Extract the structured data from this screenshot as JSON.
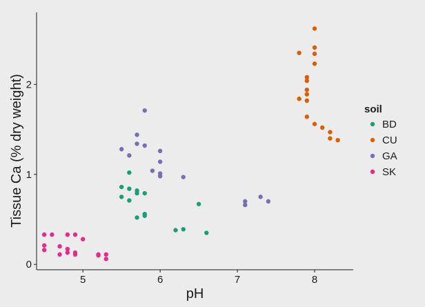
{
  "chart_data": {
    "type": "scatter",
    "title": "",
    "xlabel": "pH",
    "ylabel": "Tissue Ca (% dry weight)",
    "xlim": [
      4.4,
      8.5
    ],
    "ylim": [
      -0.06,
      2.8
    ],
    "xticks": [
      5,
      6,
      7,
      8
    ],
    "yticks": [
      0,
      1,
      2
    ],
    "grid": false,
    "legend": {
      "title": "soil",
      "placement": "right"
    },
    "series": [
      {
        "name": "BD",
        "color": "#1b9e77",
        "points": [
          [
            5.5,
            0.86
          ],
          [
            5.6,
            0.84
          ],
          [
            5.7,
            0.82
          ],
          [
            5.7,
            0.79
          ],
          [
            5.8,
            0.79
          ],
          [
            5.5,
            0.75
          ],
          [
            5.6,
            0.71
          ],
          [
            5.6,
            1.02
          ],
          [
            5.8,
            0.56
          ],
          [
            5.8,
            0.54
          ],
          [
            5.7,
            0.52
          ],
          [
            6.2,
            0.38
          ],
          [
            6.3,
            0.39
          ],
          [
            6.5,
            0.67
          ],
          [
            6.6,
            0.35
          ]
        ]
      },
      {
        "name": "CU",
        "color": "#d95f02",
        "points": [
          [
            8.0,
            2.62
          ],
          [
            8.0,
            2.41
          ],
          [
            8.0,
            2.34
          ],
          [
            7.8,
            2.35
          ],
          [
            8.0,
            2.23
          ],
          [
            7.9,
            2.08
          ],
          [
            7.9,
            2.04
          ],
          [
            7.9,
            1.94
          ],
          [
            7.9,
            1.89
          ],
          [
            7.8,
            1.84
          ],
          [
            7.9,
            1.82
          ],
          [
            7.9,
            1.64
          ],
          [
            8.0,
            1.56
          ],
          [
            8.1,
            1.52
          ],
          [
            8.2,
            1.47
          ],
          [
            8.2,
            1.4
          ],
          [
            8.3,
            1.38
          ]
        ]
      },
      {
        "name": "GA",
        "color": "#7570b3",
        "points": [
          [
            5.8,
            1.71
          ],
          [
            5.7,
            1.44
          ],
          [
            5.7,
            1.34
          ],
          [
            5.8,
            1.32
          ],
          [
            5.5,
            1.28
          ],
          [
            6.0,
            1.26
          ],
          [
            5.6,
            1.21
          ],
          [
            6.0,
            1.14
          ],
          [
            5.9,
            1.04
          ],
          [
            6.0,
            1.01
          ],
          [
            6.0,
            0.98
          ],
          [
            6.3,
            0.97
          ],
          [
            7.1,
            0.7
          ],
          [
            7.1,
            0.66
          ],
          [
            7.3,
            0.75
          ],
          [
            7.4,
            0.7
          ]
        ]
      },
      {
        "name": "SK",
        "color": "#e7298a",
        "points": [
          [
            4.5,
            0.33
          ],
          [
            4.6,
            0.33
          ],
          [
            4.8,
            0.33
          ],
          [
            4.9,
            0.33
          ],
          [
            5.0,
            0.28
          ],
          [
            4.5,
            0.21
          ],
          [
            4.5,
            0.16
          ],
          [
            4.7,
            0.2
          ],
          [
            4.8,
            0.17
          ],
          [
            4.8,
            0.13
          ],
          [
            4.9,
            0.13
          ],
          [
            4.9,
            0.11
          ],
          [
            4.7,
            0.11
          ],
          [
            5.2,
            0.11
          ],
          [
            5.3,
            0.11
          ],
          [
            5.2,
            0.1
          ],
          [
            5.3,
            0.06
          ]
        ]
      }
    ]
  }
}
